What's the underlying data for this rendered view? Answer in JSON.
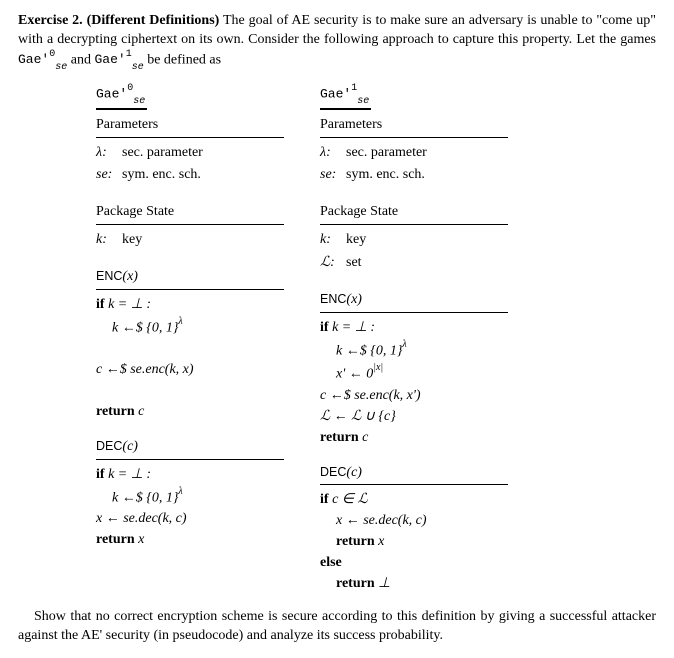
{
  "intro": {
    "title": "Exercise 2. (Different Definitions)",
    "rest_1": " The goal of AE security is to make sure an adversary is unable to \"come up\" with a decrypting ciphertext on its own. Consider the following approach to capture this property. Let the games ",
    "g0_pre": "Gae'",
    "g0_sup": "0",
    "g0_sub": "se",
    "mid": " and ",
    "g1_pre": "Gae'",
    "g1_sup": "1",
    "g1_sub": "se",
    "rest_2": " be defined as"
  },
  "left": {
    "title_pre": "Gae'",
    "title_sup": "0",
    "title_sub": "se",
    "params_hdr": "Parameters",
    "params": [
      {
        "k": "λ:",
        "v": "sec. parameter"
      },
      {
        "k": "se:",
        "v": "sym. enc. sch."
      }
    ],
    "state_hdr": "Package State",
    "state": [
      {
        "k": "k:",
        "v": "key"
      }
    ],
    "enc_hdr_name": "ENC",
    "enc_hdr_arg": "(x)",
    "enc_lines": [
      {
        "t": "if k = ⊥ :",
        "cls": "bold-if",
        "indent": 0
      },
      {
        "t": "k ←$ {0, 1}",
        "sup": "λ",
        "indent": 1
      },
      {
        "t": "",
        "indent": 0,
        "blank": true
      },
      {
        "t": "c ←$ se.enc(k, x)",
        "indent": 0,
        "it": true
      },
      {
        "t": "",
        "indent": 0,
        "blank": true
      },
      {
        "t": "return c",
        "indent": 0,
        "ret": true
      }
    ],
    "dec_hdr_name": "DEC",
    "dec_hdr_arg": "(c)",
    "dec_lines": [
      {
        "t": "if k = ⊥ :",
        "indent": 0
      },
      {
        "t": "k ←$ {0, 1}",
        "sup": "λ",
        "indent": 1
      },
      {
        "t": "x ← se.dec(k, c)",
        "indent": 0,
        "it": true
      },
      {
        "t": "return x",
        "indent": 0,
        "ret": true
      }
    ]
  },
  "right": {
    "title_pre": "Gae'",
    "title_sup": "1",
    "title_sub": "se",
    "params_hdr": "Parameters",
    "params": [
      {
        "k": "λ:",
        "v": "sec. parameter"
      },
      {
        "k": "se:",
        "v": "sym. enc. sch."
      }
    ],
    "state_hdr": "Package State",
    "state": [
      {
        "k": "k:",
        "v": "key"
      },
      {
        "k": "ℒ:",
        "v": "set"
      }
    ],
    "enc_hdr_name": "ENC",
    "enc_hdr_arg": "(x)",
    "enc_lines": [
      {
        "t": "if k = ⊥ :",
        "indent": 0
      },
      {
        "t": "k ←$ {0, 1}",
        "sup": "λ",
        "indent": 1
      },
      {
        "t": "x' ← 0",
        "sup": "|x|",
        "indent": 1,
        "it": true
      },
      {
        "t": "c ←$ se.enc(k, x')",
        "indent": 0,
        "it": true
      },
      {
        "t": "ℒ ← ℒ ∪ {c}",
        "indent": 0,
        "it": true,
        "cal": true
      },
      {
        "t": "return c",
        "indent": 0,
        "ret": true
      }
    ],
    "dec_hdr_name": "DEC",
    "dec_hdr_arg": "(c)",
    "dec_lines": [
      {
        "t": "if c ∈ ℒ",
        "indent": 0
      },
      {
        "t": "x ← se.dec(k, c)",
        "indent": 1,
        "it": true
      },
      {
        "t": "return x",
        "indent": 1,
        "ret": true
      },
      {
        "t": "else",
        "indent": 0,
        "bold": true
      },
      {
        "t": "return ⊥",
        "indent": 1,
        "ret": true
      }
    ]
  },
  "conclusion": "Show that no correct encryption scheme is secure according to this definition by giving a successful attacker against the AE' security (in pseudocode) and analyze its success probability."
}
